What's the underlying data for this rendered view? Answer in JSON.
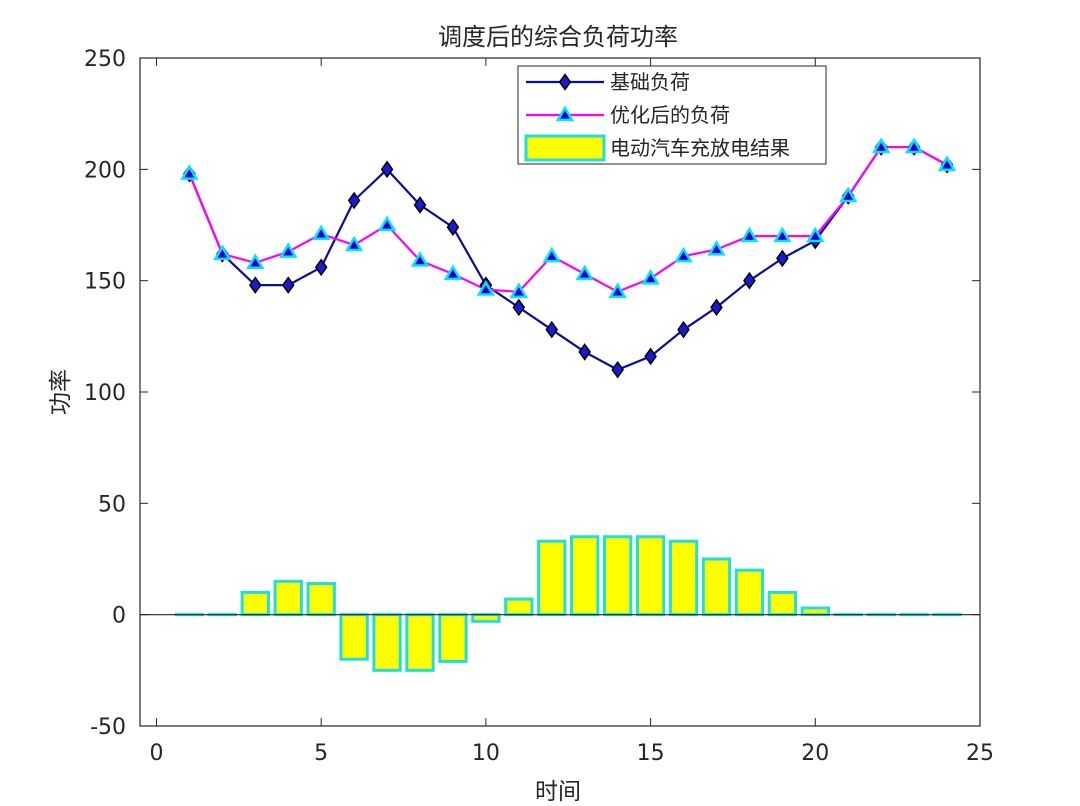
{
  "chart_data": {
    "type": "bar",
    "title": "调度后的综合负荷功率",
    "xlabel": "时间",
    "ylabel": "功率",
    "xlim": [
      -0.5,
      25
    ],
    "ylim": [
      -50,
      250
    ],
    "xticks": [
      0,
      5,
      10,
      15,
      20,
      25
    ],
    "yticks": [
      -50,
      0,
      50,
      100,
      150,
      200,
      250
    ],
    "grid": false,
    "legend_position": "top-right",
    "x": [
      1,
      2,
      3,
      4,
      5,
      6,
      7,
      8,
      9,
      10,
      11,
      12,
      13,
      14,
      15,
      16,
      17,
      18,
      19,
      20,
      21,
      22,
      23,
      24
    ],
    "series": [
      {
        "name": "基础负荷",
        "kind": "line",
        "marker": "diamond",
        "line_color": "#0a0aa8",
        "marker_fill": "#1a1ad6",
        "marker_edge": "#000000",
        "values": [
          198,
          162,
          148,
          148,
          156,
          186,
          200,
          184,
          174,
          148,
          138,
          128,
          118,
          110,
          116,
          128,
          138,
          150,
          160,
          168,
          188,
          210,
          210,
          202
        ]
      },
      {
        "name": "优化后的负荷",
        "kind": "line",
        "marker": "triangle",
        "line_color": "#ff00ff",
        "marker_fill": "#0000cc",
        "marker_edge": "#00e5ff",
        "values": [
          198,
          162,
          158,
          163,
          171,
          166,
          175,
          159,
          153,
          146,
          145,
          161,
          153,
          145,
          151,
          161,
          164,
          170,
          170,
          170,
          188,
          210,
          210,
          202
        ]
      },
      {
        "name": "电动汽车充放电结果",
        "kind": "bar",
        "fill": "#ffff00",
        "edge": "#1fdede",
        "values": [
          0,
          0,
          10,
          15,
          14,
          -20,
          -25,
          -25,
          -21,
          -3,
          7,
          33,
          35,
          35,
          35,
          33,
          25,
          20,
          10,
          3,
          0,
          0,
          0,
          0
        ]
      }
    ]
  }
}
